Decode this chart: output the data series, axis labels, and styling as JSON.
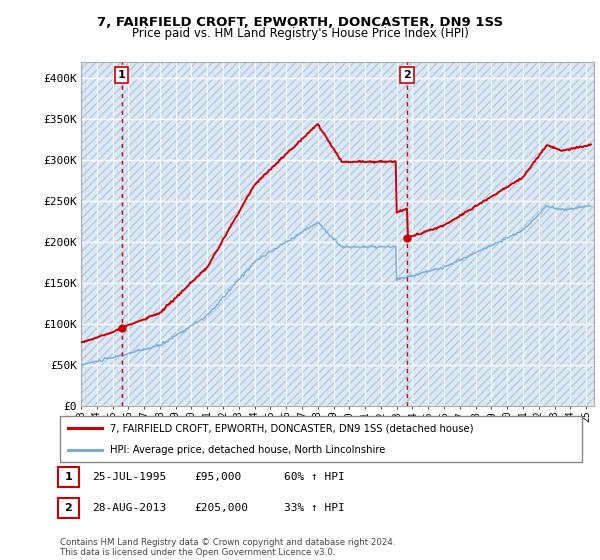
{
  "title": "7, FAIRFIELD CROFT, EPWORTH, DONCASTER, DN9 1SS",
  "subtitle": "Price paid vs. HM Land Registry's House Price Index (HPI)",
  "ylim": [
    0,
    420000
  ],
  "yticks": [
    0,
    50000,
    100000,
    150000,
    200000,
    250000,
    300000,
    350000,
    400000
  ],
  "ytick_labels": [
    "£0",
    "£50K",
    "£100K",
    "£150K",
    "£200K",
    "£250K",
    "£300K",
    "£350K",
    "£400K"
  ],
  "background_color": "#ffffff",
  "plot_bg_color": "#dce9f5",
  "hatch_color": "#b0c8e0",
  "grid_color": "#ffffff",
  "purchase1": {
    "date_num": 1995.57,
    "price": 95000,
    "label": "1",
    "date_str": "25-JUL-1995",
    "price_str": "£95,000",
    "hpi_str": "60% ↑ HPI"
  },
  "purchase2": {
    "date_num": 2013.66,
    "price": 205000,
    "label": "2",
    "date_str": "28-AUG-2013",
    "price_str": "£205,000",
    "hpi_str": "33% ↑ HPI"
  },
  "red_line_color": "#cc0000",
  "blue_line_color": "#7aadd4",
  "dot_color": "#cc0000",
  "legend_label_red": "7, FAIRFIELD CROFT, EPWORTH, DONCASTER, DN9 1SS (detached house)",
  "legend_label_blue": "HPI: Average price, detached house, North Lincolnshire",
  "footnote": "Contains HM Land Registry data © Crown copyright and database right 2024.\nThis data is licensed under the Open Government Licence v3.0.",
  "xmin": 1993,
  "xmax": 2025.5
}
